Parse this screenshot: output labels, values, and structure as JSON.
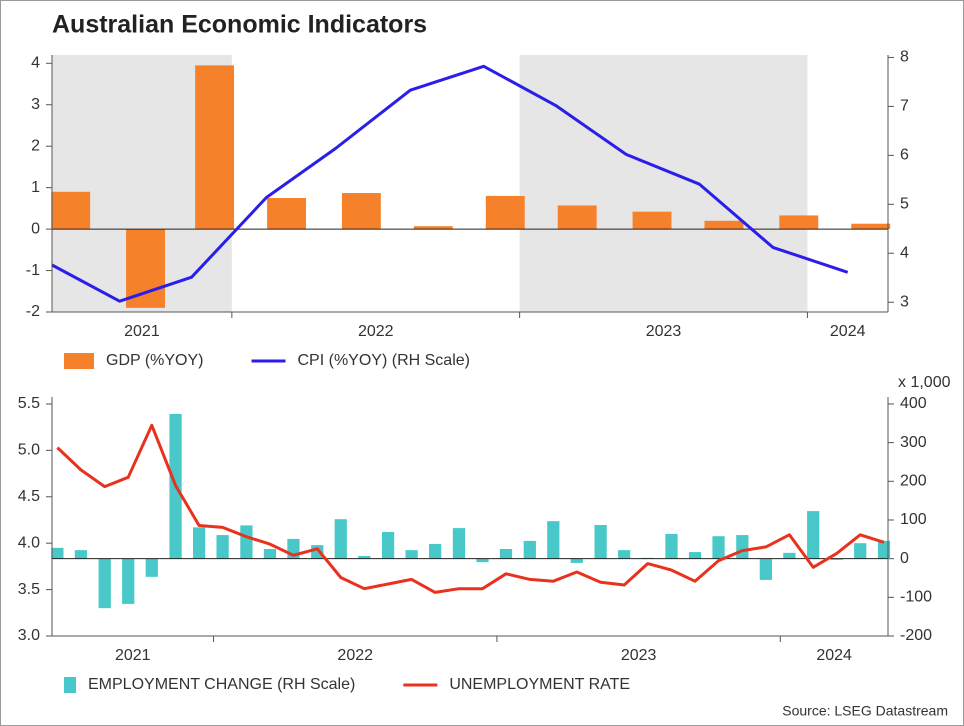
{
  "title": "Australian Economic Indicators",
  "source": "Source: LSEG Datastream",
  "chart_data": [
    {
      "type": "combo",
      "xlim": [
        2021.375,
        2024.28
      ],
      "xticks": [
        2021,
        2022,
        2023,
        2024
      ],
      "shaded_years": [
        2021,
        2023
      ],
      "ylim": [
        -2,
        4.2
      ],
      "yticks": [
        -2,
        -1,
        0,
        1,
        2,
        3,
        4
      ],
      "y2lim": [
        2.8,
        8.05
      ],
      "y2ticks": [
        3,
        4,
        5,
        6,
        7,
        8
      ],
      "legend": "below",
      "series": [
        {
          "name": "GDP (%YOY)",
          "type": "bar",
          "color": "#f5812a",
          "axis": "y",
          "x": [
            2021.44,
            2021.7,
            2021.94,
            2022.19,
            2022.45,
            2022.7,
            2022.95,
            2023.2,
            2023.46,
            2023.71,
            2023.97,
            2024.22
          ],
          "values": [
            0.9,
            -1.9,
            3.95,
            0.75,
            0.87,
            0.07,
            0.8,
            0.57,
            0.42,
            0.2,
            0.33,
            0.13
          ]
        },
        {
          "name": "CPI (%YOY) (RH Scale)",
          "type": "line",
          "color": "#2a1ee8",
          "axis": "y2",
          "x": [
            2021.375,
            2021.61,
            2021.86,
            2022.12,
            2022.36,
            2022.62,
            2022.875,
            2023.125,
            2023.37,
            2023.625,
            2023.88,
            2024.14
          ],
          "values": [
            3.76,
            3.02,
            3.51,
            5.14,
            6.14,
            7.33,
            7.82,
            7.02,
            6.02,
            5.41,
            4.12,
            3.61
          ]
        }
      ]
    },
    {
      "type": "combo",
      "xlim": [
        2021.43,
        2024.38
      ],
      "xticks": [
        2021,
        2022,
        2023,
        2024
      ],
      "ylim": [
        3.0,
        5.575
      ],
      "yticks": [
        {
          "value": 3.0,
          "label": "3.0"
        },
        3.5,
        {
          "value": 4.0,
          "label": "4.0"
        },
        4.5,
        {
          "value": 5.0,
          "label": "5.0"
        },
        5.5
      ],
      "y2lim": [
        -200,
        418
      ],
      "y2ticks": [
        -200,
        -100,
        0,
        100,
        200,
        300,
        400
      ],
      "y2label": "x 1,000",
      "legend": "below",
      "series": [
        {
          "name": "EMPLOYMENT CHANGE (RH Scale)",
          "type": "bar",
          "color": "#48c8c8",
          "axis": "y2",
          "x": [
            2021.449,
            2021.532,
            2021.616,
            2021.699,
            2021.782,
            2021.866,
            2021.949,
            2022.032,
            2022.116,
            2022.199,
            2022.282,
            2022.366,
            2022.449,
            2022.532,
            2022.616,
            2022.699,
            2022.782,
            2022.866,
            2022.949,
            2023.032,
            2023.116,
            2023.199,
            2023.282,
            2023.366,
            2023.449,
            2023.532,
            2023.616,
            2023.699,
            2023.782,
            2023.866,
            2023.949,
            2024.032,
            2024.116,
            2024.199,
            2024.282,
            2024.366
          ],
          "values": [
            28,
            22,
            -128,
            -117,
            -47,
            374,
            81,
            61,
            86,
            25,
            51,
            35,
            102,
            7,
            69,
            22,
            38,
            79,
            -9,
            25,
            46,
            97,
            -11,
            87,
            22,
            2,
            64,
            17,
            58,
            61,
            -55,
            15,
            123,
            -3,
            40,
            46
          ]
        },
        {
          "name": "UNEMPLOYMENT RATE",
          "type": "line",
          "color": "#e8321e",
          "axis": "y",
          "x": [
            2021.449,
            2021.532,
            2021.616,
            2021.699,
            2021.782,
            2021.866,
            2021.949,
            2022.032,
            2022.116,
            2022.199,
            2022.282,
            2022.366,
            2022.449,
            2022.532,
            2022.616,
            2022.699,
            2022.782,
            2022.866,
            2022.949,
            2023.032,
            2023.116,
            2023.199,
            2023.282,
            2023.366,
            2023.449,
            2023.532,
            2023.616,
            2023.699,
            2023.782,
            2023.866,
            2023.949,
            2024.032,
            2024.116,
            2024.199,
            2024.282,
            2024.366
          ],
          "values": [
            5.03,
            4.79,
            4.61,
            4.71,
            5.27,
            4.62,
            4.19,
            4.17,
            4.07,
            3.99,
            3.87,
            3.94,
            3.63,
            3.51,
            3.56,
            3.61,
            3.47,
            3.51,
            3.51,
            3.67,
            3.61,
            3.59,
            3.69,
            3.58,
            3.55,
            3.78,
            3.71,
            3.59,
            3.81,
            3.92,
            3.96,
            4.09,
            3.74,
            3.89,
            4.09,
            4.01
          ]
        }
      ]
    }
  ]
}
